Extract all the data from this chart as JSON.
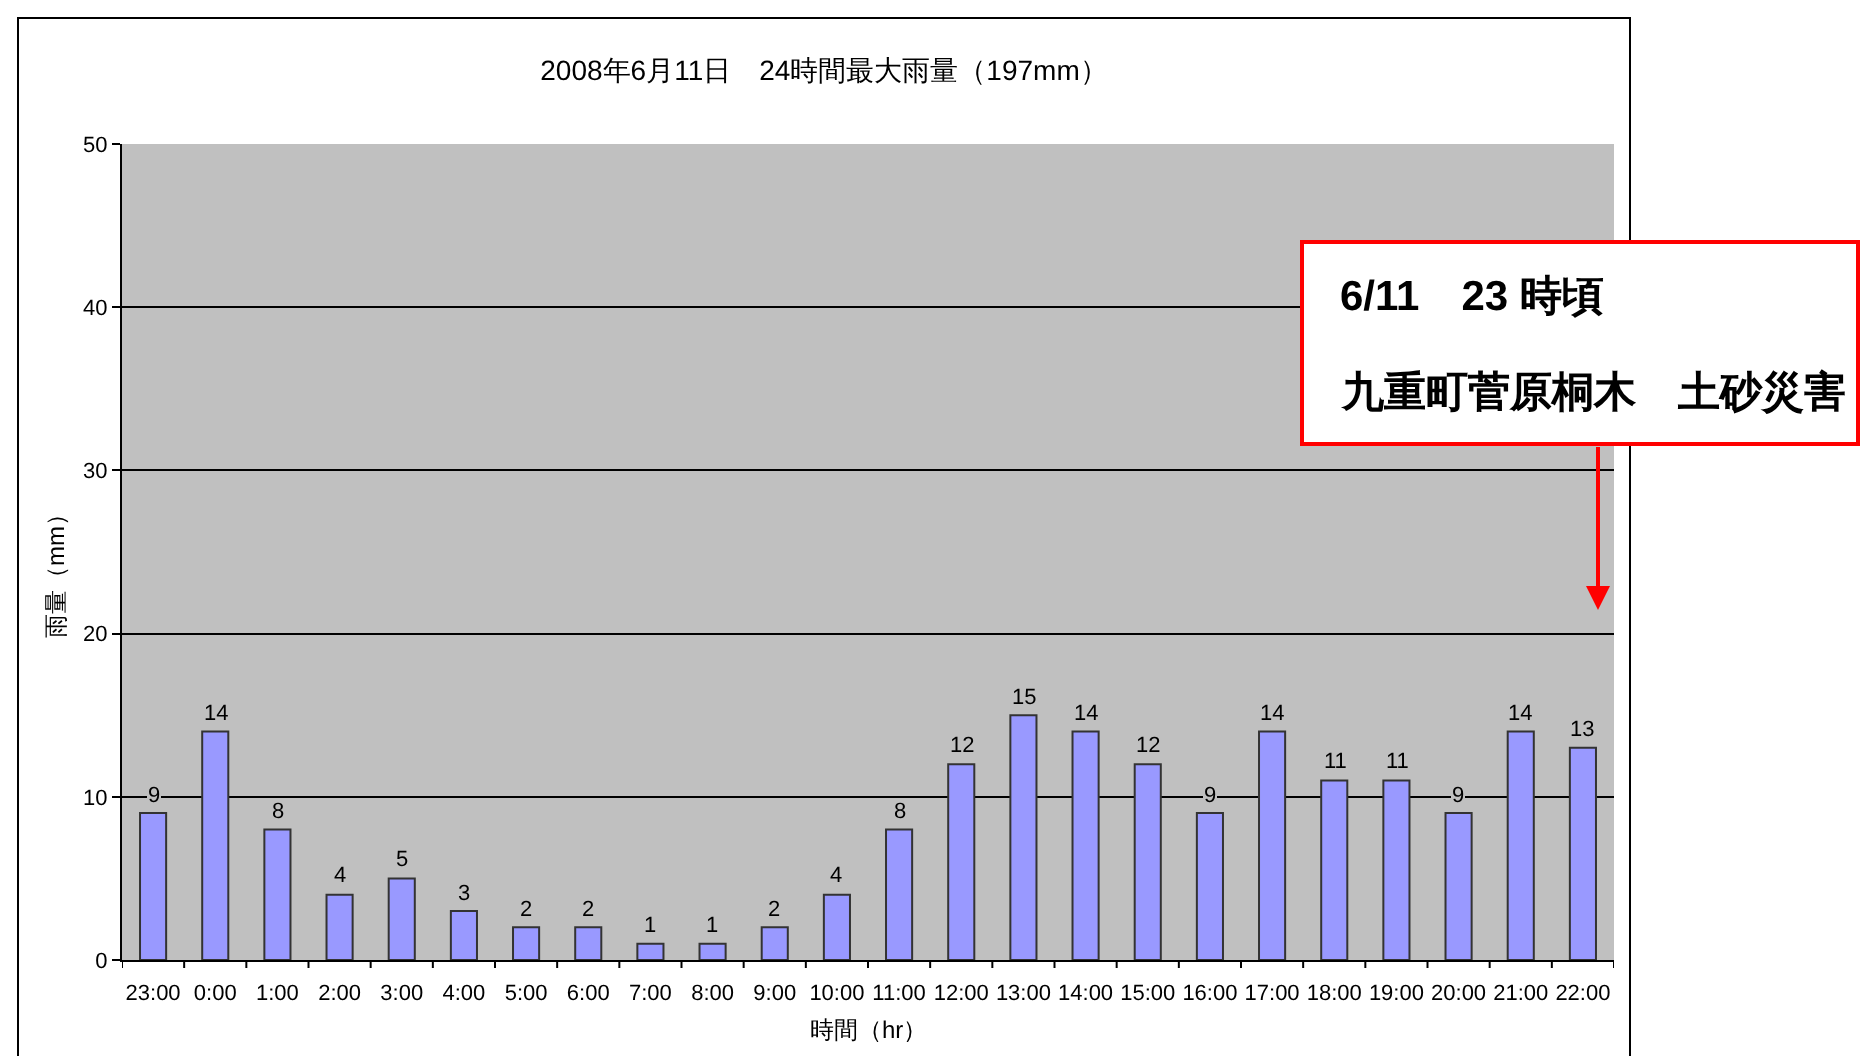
{
  "chart_data": {
    "type": "bar",
    "title": "2008年6月11日　24時間最大雨量（197mm）",
    "xlabel": "時間（hr）",
    "ylabel": "雨量（mm）",
    "categories": [
      "23:00",
      "0:00",
      "1:00",
      "2:00",
      "3:00",
      "4:00",
      "5:00",
      "6:00",
      "7:00",
      "8:00",
      "9:00",
      "10:00",
      "11:00",
      "12:00",
      "13:00",
      "14:00",
      "15:00",
      "16:00",
      "17:00",
      "18:00",
      "19:00",
      "20:00",
      "21:00",
      "22:00"
    ],
    "values": [
      9,
      14,
      8,
      4,
      5,
      3,
      2,
      2,
      1,
      1,
      2,
      4,
      8,
      12,
      15,
      14,
      12,
      9,
      14,
      11,
      11,
      9,
      14,
      13
    ],
    "color": "#9999ff",
    "ylim": [
      0,
      50
    ],
    "yticks": [
      0,
      10,
      20,
      30,
      40,
      50
    ],
    "grid": "y",
    "data_labels": true,
    "annotations": [
      "6/11　23 時頃",
      "九重町菅原桐木　土砂災害"
    ]
  }
}
